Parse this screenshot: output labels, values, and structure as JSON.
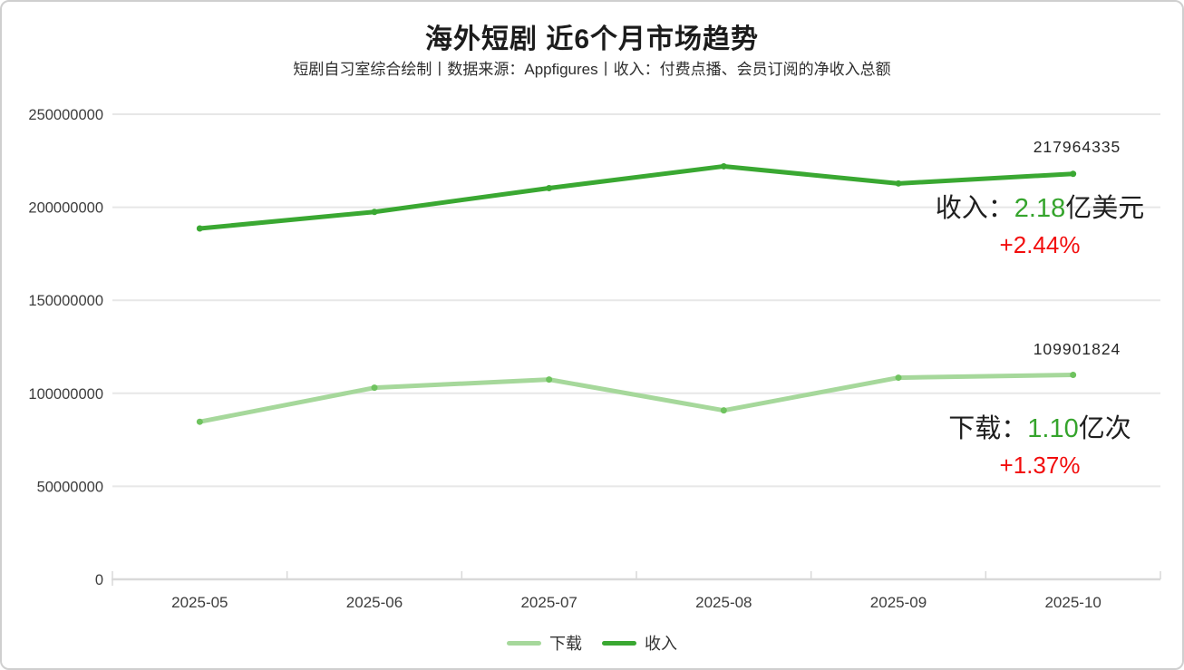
{
  "header": {
    "title": "海外短剧 近6个月市场趋势",
    "subtitle": "短剧自习室综合绘制丨数据来源：Appfigures丨收入：付费点播、会员订阅的净收入总额"
  },
  "chart_data": {
    "type": "line",
    "title": "海外短剧 近6个月市场趋势",
    "categories": [
      "2025-05",
      "2025-06",
      "2025-07",
      "2025-08",
      "2025-09",
      "2025-10"
    ],
    "series": [
      {
        "key": "downloads",
        "name": "下载",
        "color": "#a6d89b",
        "dot_color": "#6fc35f",
        "values": [
          84700000,
          103000000,
          107400000,
          90800000,
          108400000,
          109901824
        ],
        "end_label": "109901824"
      },
      {
        "key": "revenue",
        "name": "收入",
        "color": "#3aa832",
        "dot_color": "#3aa832",
        "values": [
          188600000,
          197500000,
          210300000,
          222000000,
          212800000,
          217964335
        ],
        "end_label": "217964335"
      }
    ],
    "ylim": [
      0,
      250000000
    ],
    "y_tick_labels": [
      "0",
      "50000000",
      "100000000",
      "150000000",
      "200000000",
      "250000000"
    ],
    "grid": true,
    "legend_position": "bottom"
  },
  "annotations": {
    "revenue": {
      "point_label": "217964335",
      "label": "收入：",
      "value": "2.18",
      "suffix": "亿美元",
      "change": "+2.44%"
    },
    "downloads": {
      "point_label": "109901824",
      "label": "下载：",
      "value": "1.10",
      "suffix": "亿次",
      "change": "+1.37%"
    }
  },
  "legend": {
    "items": [
      {
        "label": "下载",
        "color": "#a6d89b"
      },
      {
        "label": "收入",
        "color": "#3aa832"
      }
    ]
  },
  "colors": {
    "revenue_green": "#3aa832",
    "downloads_green": "#a6d89b",
    "accent_green": "#35a42c",
    "change_red": "#f20d0d",
    "grid": "#e7e7e7",
    "axis": "#d9d9d9",
    "axis_text": "#3d3d3d"
  }
}
